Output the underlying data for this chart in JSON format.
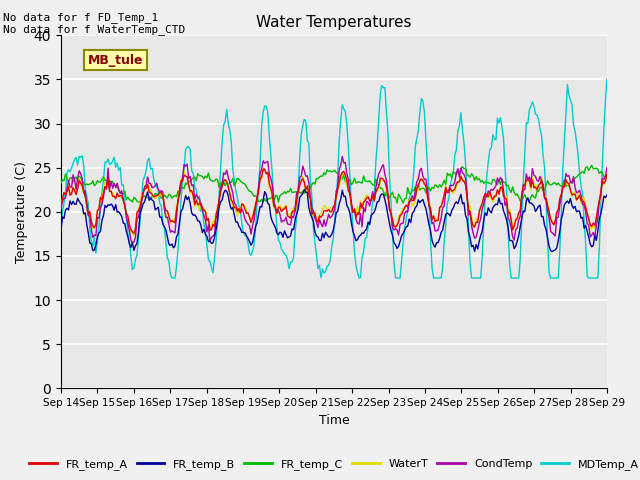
{
  "title": "Water Temperatures",
  "xlabel": "Time",
  "ylabel": "Temperature (C)",
  "ylim": [
    0,
    40
  ],
  "yticks": [
    0,
    5,
    10,
    15,
    20,
    25,
    30,
    35,
    40
  ],
  "x_labels": [
    "Sep 14",
    "Sep 15",
    "Sep 16",
    "Sep 17",
    "Sep 18",
    "Sep 19",
    "Sep 20",
    "Sep 21",
    "Sep 22",
    "Sep 23",
    "Sep 24",
    "Sep 25",
    "Sep 26",
    "Sep 27",
    "Sep 28",
    "Sep 29"
  ],
  "annotations": [
    "No data for f FD_Temp_1",
    "No data for f WaterTemp_CTD"
  ],
  "mb_tule_label": "MB_tule",
  "series_colors": {
    "FR_temp_A": "#dd0000",
    "FR_temp_B": "#000099",
    "FR_temp_C": "#00bb00",
    "WaterT": "#dddd00",
    "CondTemp": "#aa00aa",
    "MDTemp_A": "#00cccc"
  },
  "background_color": "#e8e8e8",
  "fig_color": "#f0f0f0"
}
